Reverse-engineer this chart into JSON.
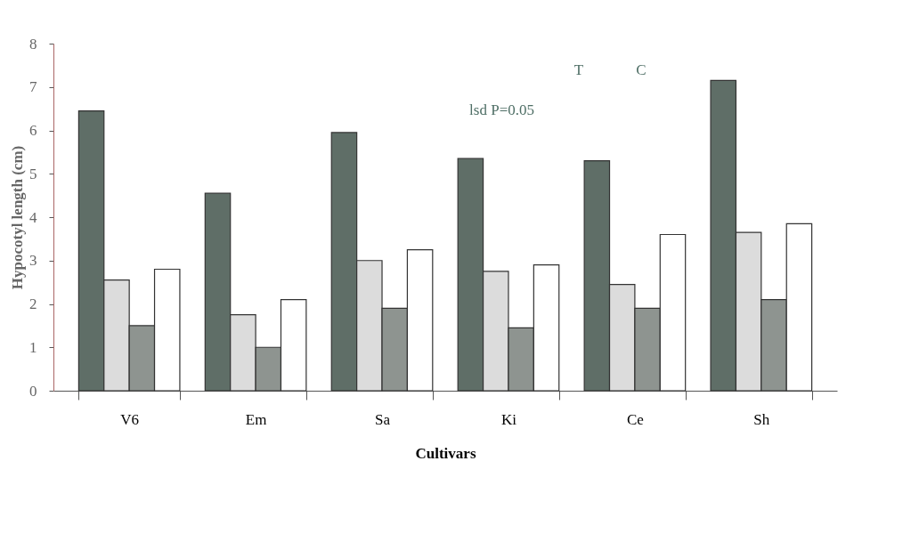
{
  "chart_data": {
    "type": "bar",
    "xlabel": "Cultivars",
    "ylabel": "Hypocotyl length (cm)",
    "categories": [
      "V6",
      "Em",
      "Sa",
      "Ki",
      "Ce",
      "Sh"
    ],
    "series": [
      {
        "color": "#5f6e67",
        "values": [
          6.45,
          4.55,
          5.95,
          5.35,
          5.3,
          7.15
        ]
      },
      {
        "color": "#dcdcdc",
        "values": [
          2.55,
          1.75,
          3.0,
          2.75,
          2.45,
          3.65
        ]
      },
      {
        "color": "#8e9490",
        "values": [
          1.5,
          1.0,
          1.9,
          1.45,
          1.9,
          2.1
        ]
      },
      {
        "color": "#ffffff",
        "values": [
          2.8,
          2.1,
          3.25,
          2.9,
          3.6,
          3.85
        ]
      }
    ],
    "ylim": [
      0,
      8
    ],
    "yticks": [
      0,
      1,
      2,
      3,
      4,
      5,
      6,
      7,
      8
    ],
    "annotations": [
      "T",
      "C",
      "lsd P=0.05"
    ],
    "grid": false
  }
}
